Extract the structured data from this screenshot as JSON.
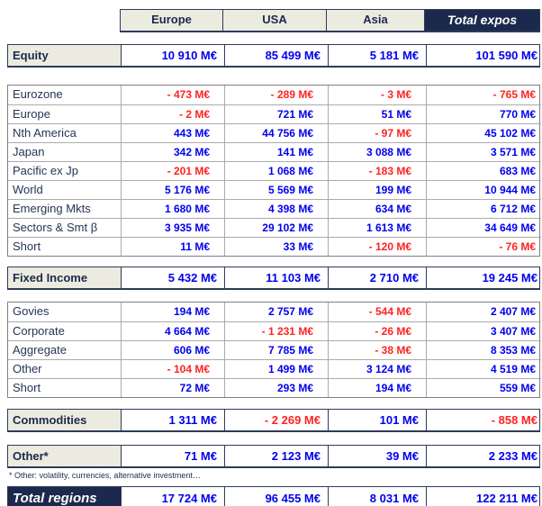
{
  "colors": {
    "navy": "#1B2A4C",
    "header_beige": "#ECEBE0",
    "positive_value": "#0000EE",
    "negative_value": "#FF2222",
    "grid_outer": "#7F7F7F",
    "grid_inner": "#ABABAB"
  },
  "columns": [
    "Europe",
    "USA",
    "Asia",
    "Total expos"
  ],
  "sections": [
    {
      "kind": "summary",
      "label": "Equity",
      "values": [
        "10 910 M€",
        "85 499 M€",
        "5 181 M€",
        "101 590 M€"
      ]
    },
    {
      "kind": "detail",
      "rows": [
        {
          "label": "Eurozone",
          "values": [
            "- 473 M€",
            "- 289 M€",
            "- 3 M€",
            "- 765 M€"
          ]
        },
        {
          "label": "Europe",
          "values": [
            "- 2 M€",
            "721 M€",
            "51 M€",
            "770 M€"
          ]
        },
        {
          "label": "Nth America",
          "values": [
            "443 M€",
            "44 756 M€",
            "- 97 M€",
            "45 102 M€"
          ]
        },
        {
          "label": "Japan",
          "values": [
            "342 M€",
            "141 M€",
            "3 088 M€",
            "3 571 M€"
          ]
        },
        {
          "label": "Pacific ex Jp",
          "values": [
            "- 201 M€",
            "1 068 M€",
            "- 183 M€",
            "683 M€"
          ]
        },
        {
          "label": "World",
          "values": [
            "5 176 M€",
            "5 569 M€",
            "199 M€",
            "10 944 M€"
          ]
        },
        {
          "label": "Emerging Mkts",
          "values": [
            "1 680 M€",
            "4 398 M€",
            "634 M€",
            "6 712 M€"
          ]
        },
        {
          "label": "Sectors & Smt β",
          "values": [
            "3 935 M€",
            "29 102 M€",
            "1 613 M€",
            "34 649 M€"
          ]
        },
        {
          "label": "Short",
          "values": [
            "11 M€",
            "33 M€",
            "- 120 M€",
            "- 76 M€"
          ]
        }
      ]
    },
    {
      "kind": "summary",
      "label": "Fixed Income",
      "values": [
        "5 432 M€",
        "11 103 M€",
        "2 710 M€",
        "19 245 M€"
      ]
    },
    {
      "kind": "detail",
      "rows": [
        {
          "label": "Govies",
          "values": [
            "194 M€",
            "2 757 M€",
            "- 544 M€",
            "2 407 M€"
          ]
        },
        {
          "label": "Corporate",
          "values": [
            "4 664 M€",
            "- 1 231 M€",
            "- 26 M€",
            "3 407 M€"
          ]
        },
        {
          "label": "Aggregate",
          "values": [
            "606 M€",
            "7 785 M€",
            "- 38 M€",
            "8 353 M€"
          ]
        },
        {
          "label": "Other",
          "values": [
            "- 104 M€",
            "1 499 M€",
            "3 124 M€",
            "4 519 M€"
          ]
        },
        {
          "label": "Short",
          "values": [
            "72 M€",
            "293 M€",
            "194 M€",
            "559 M€"
          ]
        }
      ]
    },
    {
      "kind": "summary",
      "label": "Commodities",
      "values": [
        "1 311 M€",
        "- 2 269 M€",
        "101 M€",
        "- 858 M€"
      ]
    },
    {
      "kind": "summary",
      "label": "Other*",
      "values": [
        "71 M€",
        "2 123 M€",
        "39 M€",
        "2 233 M€"
      ]
    }
  ],
  "footnote": "* Other: volatility, currencies, alternative investment…",
  "total_row": {
    "label": "Total regions",
    "values": [
      "17 724 M€",
      "96 455 M€",
      "8 031 M€",
      "122 211 M€"
    ]
  }
}
